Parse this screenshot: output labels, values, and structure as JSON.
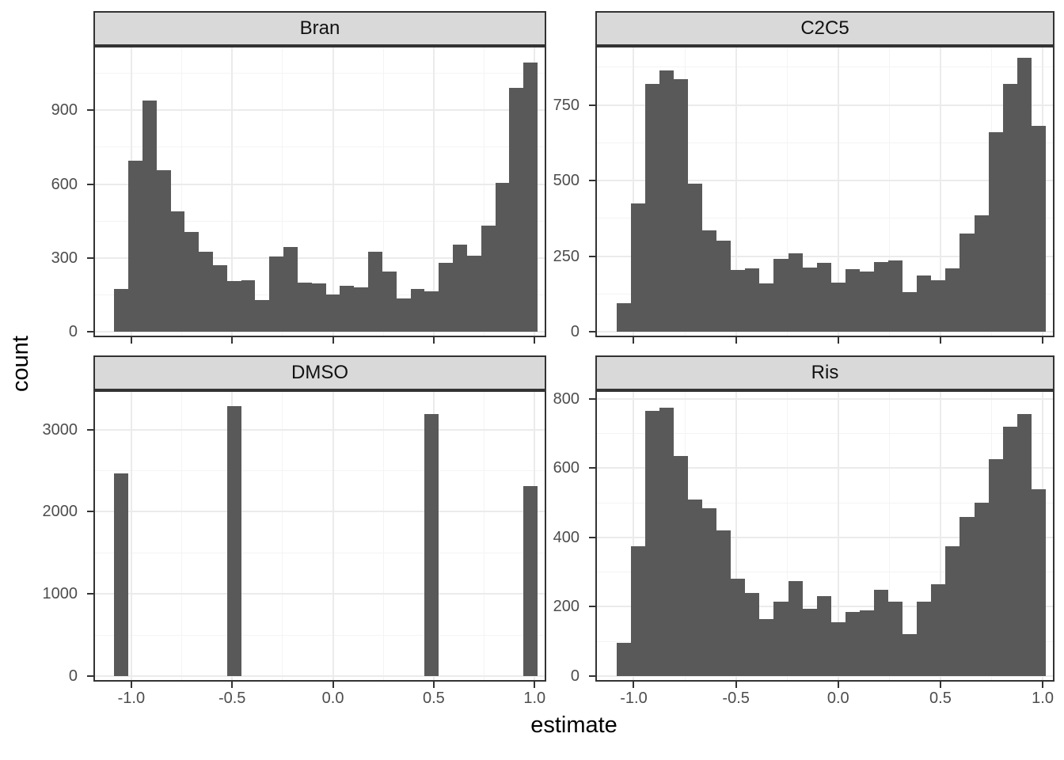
{
  "axes": {
    "x_title": "estimate",
    "y_title": "count",
    "x_ticks": [
      -1.0,
      -0.5,
      0.0,
      0.5,
      1.0
    ],
    "x_tick_labels": [
      "-1.0",
      "-0.5",
      "0.0",
      "0.5",
      "1.0"
    ],
    "x_minor_gridlines": [
      -0.75,
      -0.25,
      0.25,
      0.75
    ]
  },
  "style": {
    "bar_fill": "#595959",
    "panel_border": "#333333",
    "strip_bg": "#d9d9d9",
    "grid_major": "#ebebeb",
    "grid_minor": "#f4f4f4",
    "tick_label_color": "#4d4d4d",
    "title_color": "#000000"
  },
  "chart_data": [
    {
      "type": "bar",
      "subtype": "histogram",
      "facet": "Bran",
      "bin_width": 0.07,
      "bin_centers": [
        -1.05,
        -0.98,
        -0.91,
        -0.84,
        -0.77,
        -0.7,
        -0.63,
        -0.56,
        -0.49,
        -0.42,
        -0.35,
        -0.28,
        -0.21,
        -0.14,
        -0.07,
        0.0,
        0.07,
        0.14,
        0.21,
        0.28,
        0.35,
        0.42,
        0.49,
        0.56,
        0.63,
        0.7,
        0.77,
        0.84,
        0.91,
        0.98
      ],
      "counts": [
        175,
        695,
        940,
        655,
        490,
        405,
        325,
        270,
        205,
        210,
        130,
        305,
        345,
        200,
        195,
        150,
        185,
        180,
        325,
        245,
        135,
        175,
        165,
        280,
        355,
        310,
        430,
        605,
        990,
        1095
      ],
      "y_ticks": [
        0,
        300,
        600,
        900
      ],
      "y_tick_labels": [
        "0",
        "300",
        "600",
        "900"
      ],
      "y_minor_gridlines": [
        150,
        450,
        750,
        1050
      ],
      "y_axis_max": 1155
    },
    {
      "type": "bar",
      "subtype": "histogram",
      "facet": "C2C5",
      "bin_width": 0.07,
      "bin_centers": [
        -1.05,
        -0.98,
        -0.91,
        -0.84,
        -0.77,
        -0.7,
        -0.63,
        -0.56,
        -0.49,
        -0.42,
        -0.35,
        -0.28,
        -0.21,
        -0.14,
        -0.07,
        0.0,
        0.07,
        0.14,
        0.21,
        0.28,
        0.35,
        0.42,
        0.49,
        0.56,
        0.63,
        0.7,
        0.77,
        0.84,
        0.91,
        0.98
      ],
      "counts": [
        95,
        425,
        820,
        865,
        835,
        490,
        335,
        300,
        205,
        210,
        160,
        240,
        258,
        212,
        227,
        162,
        207,
        200,
        230,
        235,
        130,
        185,
        170,
        210,
        325,
        385,
        660,
        820,
        905,
        680
      ],
      "y_ticks": [
        0,
        250,
        500,
        750
      ],
      "y_tick_labels": [
        "0",
        "250",
        "500",
        "750"
      ],
      "y_minor_gridlines": [
        125,
        375,
        625,
        875
      ],
      "y_axis_max": 940
    },
    {
      "type": "bar",
      "subtype": "histogram",
      "facet": "DMSO",
      "bin_width": 0.07,
      "bin_centers": [
        -1.05,
        -0.98,
        -0.91,
        -0.84,
        -0.77,
        -0.7,
        -0.63,
        -0.56,
        -0.49,
        -0.42,
        -0.35,
        -0.28,
        -0.21,
        -0.14,
        -0.07,
        0.0,
        0.07,
        0.14,
        0.21,
        0.28,
        0.35,
        0.42,
        0.49,
        0.56,
        0.63,
        0.7,
        0.77,
        0.84,
        0.91,
        0.98
      ],
      "counts": [
        2470,
        0,
        0,
        0,
        0,
        0,
        0,
        0,
        3290,
        0,
        0,
        0,
        0,
        0,
        0,
        0,
        0,
        0,
        0,
        0,
        0,
        0,
        3190,
        0,
        0,
        0,
        0,
        0,
        0,
        2310
      ],
      "y_ticks": [
        0,
        1000,
        2000,
        3000
      ],
      "y_tick_labels": [
        "0",
        "1000",
        "2000",
        "3000"
      ],
      "y_minor_gridlines": [
        500,
        1500,
        2500
      ],
      "y_axis_max": 3460
    },
    {
      "type": "bar",
      "subtype": "histogram",
      "facet": "Ris",
      "bin_width": 0.07,
      "bin_centers": [
        -1.05,
        -0.98,
        -0.91,
        -0.84,
        -0.77,
        -0.7,
        -0.63,
        -0.56,
        -0.49,
        -0.42,
        -0.35,
        -0.28,
        -0.21,
        -0.14,
        -0.07,
        0.0,
        0.07,
        0.14,
        0.21,
        0.28,
        0.35,
        0.42,
        0.49,
        0.56,
        0.63,
        0.7,
        0.77,
        0.84,
        0.91,
        0.98
      ],
      "counts": [
        95,
        375,
        765,
        775,
        635,
        510,
        485,
        420,
        280,
        240,
        165,
        215,
        275,
        195,
        230,
        155,
        185,
        190,
        250,
        215,
        120,
        215,
        265,
        375,
        460,
        500,
        625,
        720,
        755,
        540
      ],
      "y_ticks": [
        0,
        200,
        400,
        600,
        800
      ],
      "y_tick_labels": [
        "0",
        "200",
        "400",
        "600",
        "800"
      ],
      "y_minor_gridlines": [
        100,
        300,
        500,
        700
      ],
      "y_axis_max": 820
    }
  ]
}
